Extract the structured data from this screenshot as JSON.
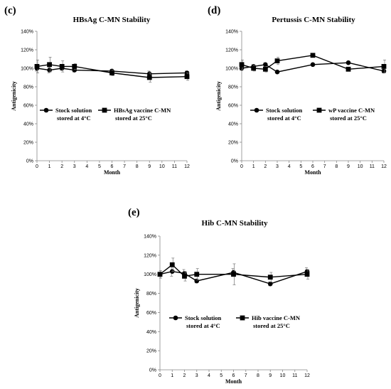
{
  "chart_data": [
    {
      "panel": "(c)",
      "type": "line",
      "title": "HBsAg C-MN Stability",
      "xlabel": "Month",
      "ylabel": "Antigenicity",
      "xlim": [
        0,
        12
      ],
      "ylim": [
        0,
        140
      ],
      "x_ticks": [
        "0",
        "1",
        "2",
        "3",
        "4",
        "5",
        "6",
        "7",
        "8",
        "9",
        "10",
        "11",
        "12"
      ],
      "y_ticks": [
        "0%",
        "20%",
        "40%",
        "60%",
        "80%",
        "100%",
        "120%",
        "140%"
      ],
      "grid": false,
      "legend_position": "center-left",
      "series": [
        {
          "name": "Stock solution\nstored at 4°C",
          "marker": "circle",
          "x": [
            0,
            1,
            2,
            3,
            6,
            9,
            12
          ],
          "y": [
            100,
            98,
            100,
            98,
            97,
            94,
            95
          ],
          "err": [
            3,
            3,
            2,
            2,
            2,
            3,
            2
          ]
        },
        {
          "name": "HBsAg vaccine C-MN\nstored at 25°C",
          "marker": "square",
          "x": [
            0,
            1,
            2,
            3,
            6,
            9,
            12
          ],
          "y": [
            102,
            104,
            102,
            102,
            95,
            90,
            91
          ],
          "err": [
            7,
            8,
            6,
            3,
            3,
            5,
            4
          ]
        }
      ]
    },
    {
      "panel": "(d)",
      "type": "line",
      "title": "Pertussis C-MN Stability",
      "xlabel": "Month",
      "ylabel": "Antigenicity",
      "xlim": [
        0,
        12
      ],
      "ylim": [
        0,
        140
      ],
      "x_ticks": [
        "0",
        "1",
        "2",
        "3",
        "4",
        "5",
        "6",
        "7",
        "8",
        "9",
        "10",
        "11",
        "12"
      ],
      "y_ticks": [
        "0%",
        "20%",
        "40%",
        "60%",
        "80%",
        "100%",
        "120%",
        "140%"
      ],
      "grid": false,
      "legend_position": "center",
      "series": [
        {
          "name": "Stock solution\nstored at 4°C",
          "marker": "circle",
          "x": [
            0,
            1,
            2,
            3,
            6,
            9,
            12
          ],
          "y": [
            100,
            102,
            104,
            96,
            104,
            106,
            97
          ],
          "err": [
            2,
            2,
            2,
            1,
            1,
            1,
            2
          ]
        },
        {
          "name": "wP vaccine C-MN\nstored at 25°C",
          "marker": "square",
          "x": [
            0,
            1,
            2,
            3,
            6,
            9,
            12
          ],
          "y": [
            104,
            100,
            99,
            108,
            114,
            99,
            102
          ],
          "err": [
            5,
            3,
            3,
            4,
            2,
            2,
            7
          ]
        }
      ]
    },
    {
      "panel": "(e)",
      "type": "line",
      "title": "Hib C-MN Stability",
      "xlabel": "Month",
      "ylabel": "Antigenicity",
      "xlim": [
        0,
        12
      ],
      "ylim": [
        0,
        140
      ],
      "x_ticks": [
        "0",
        "1",
        "2",
        "3",
        "4",
        "5",
        "6",
        "7",
        "8",
        "9",
        "10",
        "11",
        "12"
      ],
      "y_ticks": [
        "0%",
        "20%",
        "40%",
        "60%",
        "80%",
        "100%",
        "120%",
        "140%"
      ],
      "grid": false,
      "legend_position": "center",
      "series": [
        {
          "name": "Stock solution\nstored at 4°C",
          "marker": "circle",
          "x": [
            0,
            1,
            2,
            3,
            6,
            9,
            12
          ],
          "y": [
            100,
            103,
            101,
            93,
            102,
            90,
            103
          ],
          "err": [
            2,
            5,
            4,
            2,
            4,
            2,
            4
          ]
        },
        {
          "name": "Hib vaccine C-MN\nstored at 25°C",
          "marker": "square",
          "x": [
            0,
            1,
            2,
            3,
            6,
            9,
            12
          ],
          "y": [
            100,
            110,
            98,
            100,
            100,
            97,
            100
          ],
          "err": [
            4,
            7,
            5,
            6,
            11,
            5,
            5
          ]
        }
      ]
    }
  ]
}
